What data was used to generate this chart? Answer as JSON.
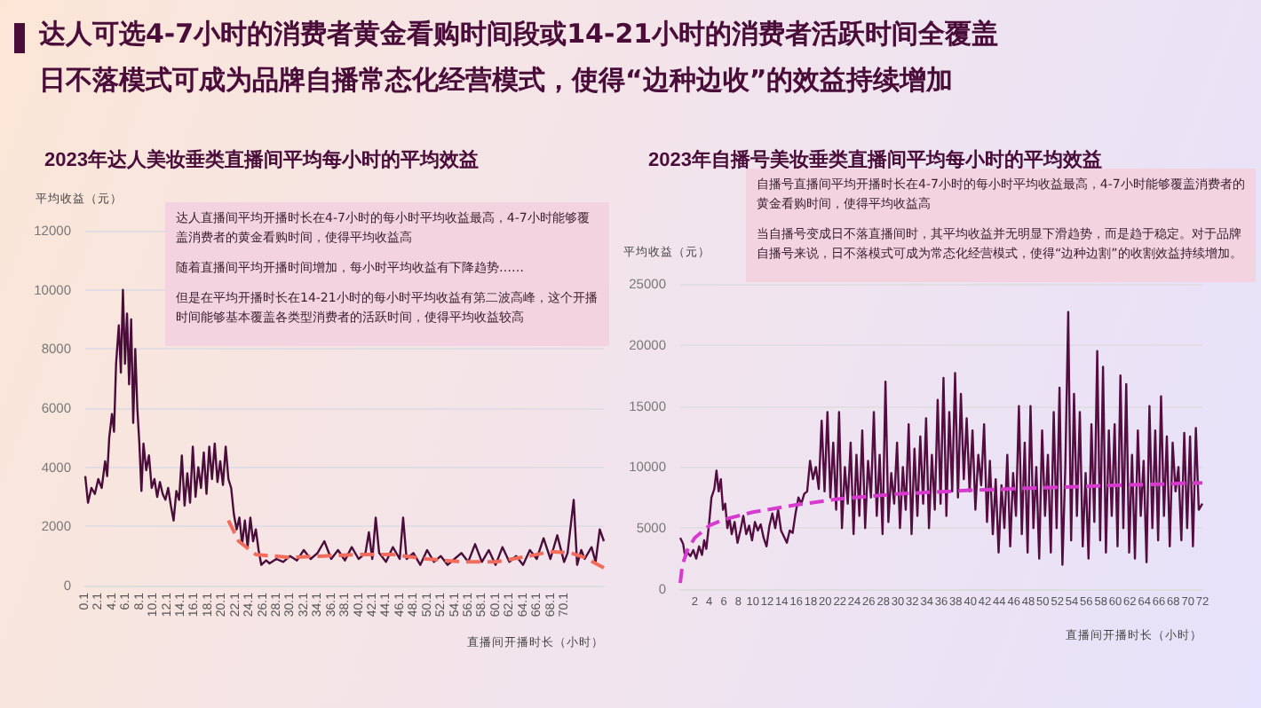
{
  "chart_data": [
    {
      "type": "other",
      "title": "达人可选4-7小时的消费者黄金看购时间段或14-21小时的消费者活跃时间全覆盖",
      "subtitle": "日不落模式可成为品牌自播常态化经营模式，使得“边种边收”的效益持续增加"
    },
    {
      "type": "line",
      "title": "2023年达人美妆垂类直播间平均每小时的平均效益",
      "xlabel": "直播间开播时长（小时）",
      "ylabel": "平均收益（元）",
      "annotations": [
        "达人直播间平均开播时长在4-7小时的每小时平均收益最高，4-7小时能够覆盖消费者的黄金看购时间，使得平均收益高",
        "随着直播间平均开播时间增加，每小时平均收益有下降趋势……",
        "但是在平均开播时长在14-21小时的每小时平均收益有第二波高峰，这个开播时间能够基本覆盖各类型消费者的活跃时间，使得平均收益较高"
      ],
      "xlim": [
        0.1,
        75.8
      ],
      "xticks": [
        0.1,
        2.1,
        4.1,
        6.1,
        8.1,
        10.1,
        12.1,
        14.1,
        16.1,
        18.1,
        20.1,
        22.1,
        24.1,
        26.1,
        28.1,
        30.1,
        32.1,
        34.1,
        36.1,
        38.1,
        40.1,
        42.1,
        44.1,
        46.1,
        48.1,
        50.1,
        52.1,
        54.1,
        56.1,
        58.1,
        60.1,
        62.1,
        64.1,
        66.1,
        68.1,
        70.1
      ],
      "ylim": [
        0,
        12000
      ],
      "yticks": [
        0,
        2000,
        4000,
        6000,
        8000,
        10000,
        12000
      ],
      "grid": "y",
      "marker": "none",
      "series": [
        {
          "color": "#4a0d3a",
          "x": [
            0.1,
            0.5,
            1,
            1.5,
            2,
            2.5,
            3,
            3.3,
            3.6,
            4,
            4.3,
            4.6,
            5,
            5.3,
            5.6,
            5.9,
            6.2,
            6.5,
            6.8,
            7.1,
            7.4,
            7.7,
            8,
            8.3,
            8.6,
            9,
            9.4,
            9.8,
            10.2,
            10.6,
            11,
            11.4,
            11.8,
            12.2,
            12.6,
            13,
            13.4,
            13.8,
            14.2,
            14.6,
            15,
            15.4,
            15.8,
            16.2,
            16.6,
            17,
            17.4,
            17.8,
            18.2,
            18.6,
            19,
            19.4,
            19.8,
            20.2,
            20.6,
            21,
            21.4,
            21.8,
            22.2,
            22.6,
            23,
            23.4,
            23.8,
            24.2,
            24.6,
            25,
            25.4,
            25.8,
            26.5,
            27,
            28,
            29,
            30,
            31,
            32,
            33,
            34,
            35,
            36,
            37,
            38,
            39,
            40,
            41,
            41.5,
            42,
            42.5,
            43,
            44,
            45,
            46,
            46.5,
            47,
            48,
            49,
            50,
            51,
            52,
            53,
            54,
            55,
            56,
            57,
            58,
            59,
            60,
            61,
            62,
            63,
            64,
            65,
            66,
            67,
            68,
            69,
            70,
            70.5,
            71.4,
            71.9,
            72.5,
            73,
            74,
            74.6,
            75.2,
            75.8
          ],
          "values": [
            3700,
            2800,
            3300,
            3100,
            3600,
            3300,
            4200,
            3700,
            5000,
            5800,
            5200,
            7500,
            8800,
            7200,
            10000,
            7500,
            9200,
            6800,
            9000,
            5500,
            8000,
            6000,
            4800,
            3200,
            4800,
            3900,
            4400,
            3300,
            3600,
            3000,
            3500,
            3100,
            2900,
            3300,
            2700,
            2200,
            3200,
            2900,
            4400,
            2700,
            3800,
            2800,
            4700,
            3000,
            4000,
            3300,
            4500,
            3100,
            4700,
            3600,
            4800,
            3500,
            4200,
            3400,
            4700,
            3600,
            3300,
            2400,
            1900,
            2300,
            1400,
            2200,
            1300,
            2300,
            1500,
            1900,
            1200,
            700,
            850,
            750,
            900,
            800,
            1000,
            850,
            1200,
            900,
            1100,
            1500,
            900,
            1200,
            850,
            1300,
            900,
            1100,
            1800,
            900,
            2300,
            1100,
            800,
            1300,
            900,
            2300,
            900,
            1100,
            700,
            1200,
            800,
            1000,
            700,
            900,
            1100,
            800,
            1400,
            800,
            1200,
            700,
            1300,
            800,
            1000,
            700,
            1200,
            900,
            1600,
            900,
            1700,
            800,
            1100,
            2900,
            700,
            1200,
            900,
            1300,
            800,
            1900,
            1500
          ]
        },
        {
          "type": "line",
          "line_style": "dashed",
          "color": "#f26b5b",
          "x": [
            21,
            22.5,
            25,
            30,
            35,
            40,
            45,
            50,
            55,
            60,
            65,
            68,
            71,
            73,
            75.8
          ],
          "values": [
            2200,
            1500,
            1050,
            950,
            1000,
            1050,
            1050,
            900,
            800,
            800,
            1000,
            1150,
            1100,
            950,
            600
          ]
        }
      ]
    },
    {
      "type": "line",
      "title": "2023年自播号美妆垂类直播间平均每小时的平均效益",
      "xlabel": "直播间开播时长（小时）",
      "ylabel": "平均收益（元）",
      "annotations": [
        "自播号直播间平均开播时长在4-7小时的每小时平均收益最高，4-7小时能够覆盖消费者的黄金看购时间，使得平均收益高",
        "当自播号变成日不落直播间时，其平均收益并无明显下滑趋势，而是趋于稳定。对于品牌自播号来说，日不落模式可成为常态化经营模式，使得“边种边割”的收割效益持续增加。"
      ],
      "xlim": [
        0,
        72
      ],
      "xticks": [
        2,
        4,
        6,
        8,
        10,
        12,
        14,
        16,
        18,
        20,
        22,
        24,
        26,
        28,
        30,
        32,
        34,
        36,
        38,
        40,
        42,
        44,
        46,
        48,
        50,
        52,
        54,
        56,
        58,
        60,
        62,
        64,
        66,
        68,
        70,
        72
      ],
      "ylim": [
        0,
        25000
      ],
      "yticks": [
        0,
        5000,
        10000,
        15000,
        20000,
        25000
      ],
      "grid": "y",
      "marker": "none",
      "series": [
        {
          "color": "#540d40",
          "x": [
            0,
            0.4,
            0.7,
            1,
            1.4,
            1.8,
            2.2,
            2.6,
            3,
            3.3,
            3.6,
            4,
            4.3,
            4.7,
            5,
            5.3,
            5.6,
            5.9,
            6.2,
            6.5,
            6.8,
            7.1,
            7.5,
            7.9,
            8.3,
            8.7,
            9.1,
            9.5,
            9.9,
            10.3,
            10.7,
            11.1,
            11.5,
            11.9,
            12.3,
            12.7,
            13.1,
            13.5,
            13.9,
            14.3,
            14.7,
            15.1,
            15.5,
            15.9,
            16.3,
            16.7,
            17.1,
            17.5,
            17.9,
            18.3,
            18.7,
            19.1,
            19.5,
            19.9,
            20.3,
            20.7,
            21.1,
            21.5,
            21.9,
            22.3,
            22.7,
            23.1,
            23.5,
            23.9,
            24.3,
            24.7,
            25.1,
            25.5,
            25.9,
            26.3,
            26.7,
            27.1,
            27.5,
            27.9,
            28.3,
            28.7,
            29.1,
            29.5,
            29.9,
            30.3,
            30.7,
            31.1,
            31.5,
            31.9,
            32.3,
            32.7,
            33.1,
            33.5,
            33.9,
            34.3,
            34.7,
            35.1,
            35.5,
            35.9,
            36.3,
            36.7,
            37.1,
            37.5,
            37.9,
            38.3,
            38.7,
            39.1,
            39.5,
            39.9,
            40.3,
            40.7,
            41.1,
            41.5,
            41.9,
            42.3,
            42.7,
            43.1,
            43.5,
            43.9,
            44.3,
            44.7,
            45.1,
            45.5,
            45.9,
            46.3,
            46.7,
            47.1,
            47.5,
            47.9,
            48.3,
            48.7,
            49.1,
            49.5,
            49.9,
            50.3,
            50.7,
            51.1,
            51.5,
            51.9,
            52.3,
            52.7,
            53.1,
            53.5,
            53.9,
            54.3,
            54.7,
            55.1,
            55.5,
            55.9,
            56.3,
            56.7,
            57.1,
            57.5,
            57.9,
            58.3,
            58.7,
            59.1,
            59.5,
            59.9,
            60.3,
            60.7,
            61.1,
            61.5,
            61.9,
            62.3,
            62.7,
            63.1,
            63.5,
            63.9,
            64.3,
            64.7,
            65.1,
            65.5,
            65.9,
            66.3,
            66.7,
            67.1,
            67.5,
            67.9,
            68.3,
            68.7,
            69.1,
            69.5,
            69.9,
            70.3,
            70.7,
            71.1,
            71.5,
            72
          ],
          "values": [
            4200,
            3700,
            2600,
            3000,
            2700,
            3200,
            2500,
            3500,
            2800,
            4000,
            3300,
            5500,
            7500,
            8200,
            9700,
            8000,
            9000,
            6500,
            7000,
            5000,
            5800,
            4500,
            5500,
            3800,
            4800,
            6000,
            4500,
            5200,
            4000,
            5500,
            4800,
            5300,
            4200,
            3500,
            5200,
            6200,
            5000,
            6500,
            4800,
            4300,
            3800,
            4800,
            4600,
            6200,
            7500,
            7000,
            7800,
            8000,
            10500,
            9000,
            10000,
            8200,
            13800,
            8000,
            14500,
            7500,
            12000,
            6500,
            14500,
            5000,
            10000,
            7000,
            12000,
            4500,
            11000,
            6000,
            13000,
            5000,
            10500,
            7500,
            14500,
            6000,
            11000,
            4500,
            17000,
            5500,
            9500,
            7000,
            12000,
            5000,
            10000,
            6500,
            13500,
            4500,
            11500,
            6000,
            12500,
            7000,
            14000,
            5000,
            11000,
            6500,
            15500,
            7000,
            17300,
            6000,
            14500,
            8000,
            17700,
            7500,
            16000,
            9000,
            14000,
            8000,
            13000,
            6500,
            11000,
            8500,
            13500,
            5500,
            10500,
            4500,
            9000,
            3000,
            8500,
            5000,
            11000,
            3500,
            9500,
            6000,
            15000,
            4500,
            12000,
            3000,
            15000,
            5000,
            10000,
            2500,
            13000,
            6000,
            11000,
            3000,
            14500,
            5000,
            16500,
            2000,
            10000,
            22700,
            4000,
            16000,
            6000,
            14500,
            3500,
            9500,
            2500,
            13500,
            5500,
            19500,
            4000,
            18200,
            3000,
            13000,
            6000,
            13500,
            3500,
            17500,
            5000,
            16800,
            3000,
            11000,
            2500,
            13000,
            6000,
            10500,
            2200,
            15000,
            5000,
            13000,
            4000,
            15800,
            6000,
            12500,
            3500,
            12000,
            8000,
            10000,
            4000,
            12800,
            5000,
            12500,
            3500,
            13200,
            6500,
            7000
          ]
        },
        {
          "type": "line",
          "line_style": "dashed",
          "color": "#d83ad0",
          "x": [
            0,
            0.3,
            1,
            2,
            4,
            6,
            10,
            16,
            22,
            30,
            40,
            50,
            60,
            72
          ],
          "values": [
            500,
            2000,
            3200,
            4200,
            5200,
            5700,
            6300,
            6900,
            7400,
            7800,
            8100,
            8300,
            8500,
            8700
          ]
        }
      ]
    }
  ]
}
